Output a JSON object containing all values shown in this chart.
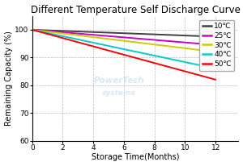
{
  "title": "Different Temperature Self Discharge Curve",
  "xlabel": "Storage Time(Months)",
  "ylabel": "Remaining Capacity (%)",
  "xlim": [
    0,
    13.5
  ],
  "ylim": [
    60,
    105
  ],
  "xticks": [
    0,
    2,
    4,
    6,
    8,
    10,
    12
  ],
  "yticks": [
    60,
    70,
    80,
    90,
    100
  ],
  "series": [
    {
      "label": "10℃",
      "color": "#404040",
      "x": [
        0,
        12
      ],
      "y": [
        100,
        97.5
      ]
    },
    {
      "label": "25℃",
      "color": "#cc00cc",
      "x": [
        0,
        12
      ],
      "y": [
        100,
        94.5
      ]
    },
    {
      "label": "30℃",
      "color": "#cccc00",
      "x": [
        0,
        12
      ],
      "y": [
        100,
        92.0
      ]
    },
    {
      "label": "40℃",
      "color": "#00cccc",
      "x": [
        0,
        12
      ],
      "y": [
        100,
        86.0
      ]
    },
    {
      "label": "50℃",
      "color": "#ff0000",
      "x": [
        0,
        12
      ],
      "y": [
        100,
        82.0
      ]
    }
  ],
  "background_color": "#ffffff",
  "grid_color": "#aaaaaa",
  "title_fontsize": 8.5,
  "axis_fontsize": 7,
  "tick_fontsize": 6.5,
  "legend_fontsize": 6.5
}
